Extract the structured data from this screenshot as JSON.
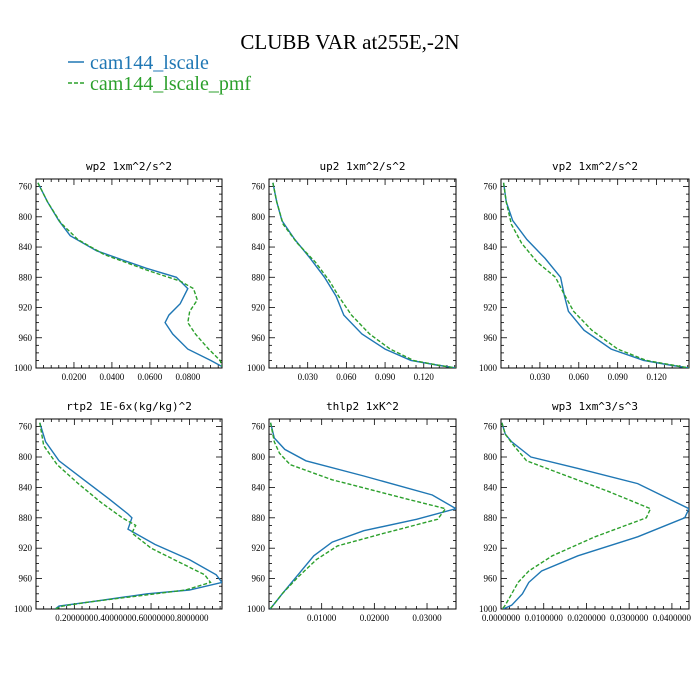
{
  "title": "CLUBB VAR at255E,-2N",
  "colors": {
    "series1": "#1f77b4",
    "series2": "#2ca02c"
  },
  "legend": [
    {
      "label": "cam144_lscale",
      "color": "#1f77b4",
      "dash": false
    },
    {
      "label": "cam144_lscale_pmf",
      "color": "#2ca02c",
      "dash": true
    }
  ],
  "chart_data": [
    {
      "type": "line",
      "title": "wp2  1xm^2/s^2",
      "xlim": [
        0.0,
        0.098
      ],
      "ylim": [
        1000,
        750
      ],
      "yticks": [
        760,
        800,
        840,
        880,
        920,
        960,
        1000
      ],
      "xticks": [
        0.02,
        0.04,
        0.06,
        0.08
      ],
      "xtick_labels": [
        "0.0200",
        "0.0400",
        "0.0600",
        "0.0800"
      ],
      "series": [
        {
          "name": "cam144_lscale",
          "x": [
            0.001,
            0.003,
            0.006,
            0.012,
            0.018,
            0.032,
            0.058,
            0.074,
            0.08,
            0.076,
            0.07,
            0.068,
            0.072,
            0.08,
            0.092,
            0.098
          ],
          "y": [
            755,
            765,
            780,
            805,
            825,
            845,
            868,
            880,
            895,
            915,
            930,
            940,
            955,
            975,
            990,
            998
          ]
        },
        {
          "name": "cam144_lscale_pmf",
          "x": [
            0.001,
            0.003,
            0.006,
            0.013,
            0.022,
            0.036,
            0.06,
            0.076,
            0.083,
            0.085,
            0.081,
            0.08,
            0.084,
            0.091,
            0.097,
            0.098
          ],
          "y": [
            755,
            765,
            780,
            808,
            830,
            850,
            872,
            885,
            895,
            910,
            925,
            940,
            955,
            975,
            990,
            998
          ]
        }
      ]
    },
    {
      "type": "line",
      "title": "up2  1xm^2/s^2",
      "xlim": [
        0.0,
        0.145
      ],
      "ylim": [
        1000,
        750
      ],
      "yticks": [
        760,
        800,
        840,
        880,
        920,
        960,
        1000
      ],
      "xticks": [
        0.03,
        0.06,
        0.09,
        0.12
      ],
      "xtick_labels": [
        "0.030",
        "0.060",
        "0.090",
        "0.120"
      ],
      "series": [
        {
          "name": "cam144_lscale",
          "x": [
            0.003,
            0.006,
            0.01,
            0.02,
            0.032,
            0.043,
            0.052,
            0.058,
            0.072,
            0.09,
            0.11,
            0.13,
            0.145
          ],
          "y": [
            755,
            780,
            805,
            830,
            855,
            880,
            905,
            930,
            955,
            975,
            990,
            996,
            1000
          ]
        },
        {
          "name": "cam144_lscale_pmf",
          "x": [
            0.003,
            0.006,
            0.011,
            0.022,
            0.036,
            0.047,
            0.054,
            0.064,
            0.078,
            0.094,
            0.112,
            0.13,
            0.145
          ],
          "y": [
            755,
            780,
            810,
            835,
            860,
            885,
            905,
            930,
            955,
            975,
            990,
            996,
            1000
          ]
        }
      ]
    },
    {
      "type": "line",
      "title": "vp2  1xm^2/s^2",
      "xlim": [
        0.0,
        0.145
      ],
      "ylim": [
        1000,
        750
      ],
      "yticks": [
        760,
        800,
        840,
        880,
        920,
        960,
        1000
      ],
      "xticks": [
        0.03,
        0.06,
        0.09,
        0.12
      ],
      "xtick_labels": [
        "0.030",
        "0.060",
        "0.090",
        "0.120"
      ],
      "series": [
        {
          "name": "cam144_lscale",
          "x": [
            0.002,
            0.004,
            0.009,
            0.02,
            0.034,
            0.046,
            0.049,
            0.052,
            0.064,
            0.085,
            0.11,
            0.13,
            0.145
          ],
          "y": [
            755,
            780,
            805,
            830,
            855,
            880,
            905,
            925,
            950,
            975,
            990,
            996,
            1000
          ]
        },
        {
          "name": "cam144_lscale_pmf",
          "x": [
            0.002,
            0.004,
            0.008,
            0.016,
            0.028,
            0.042,
            0.048,
            0.056,
            0.07,
            0.09,
            0.112,
            0.132,
            0.145
          ],
          "y": [
            755,
            780,
            810,
            835,
            860,
            880,
            900,
            925,
            950,
            975,
            990,
            996,
            1000
          ]
        }
      ]
    },
    {
      "type": "line",
      "title": "rtp2  1E-6x(kg/kg)^2",
      "xlim": [
        0.0,
        0.97
      ],
      "ylim": [
        1000,
        750
      ],
      "yticks": [
        760,
        800,
        840,
        880,
        920,
        960,
        1000
      ],
      "xticks": [
        0.2,
        0.4,
        0.6,
        0.8
      ],
      "xtick_labels": [
        "0.2000000",
        "0.4000000",
        "0.6000000",
        "0.8000000"
      ],
      "series": [
        {
          "name": "cam144_lscale",
          "x": [
            0.02,
            0.05,
            0.12,
            0.25,
            0.38,
            0.48,
            0.5,
            0.48,
            0.62,
            0.8,
            0.94,
            0.97,
            0.8,
            0.58,
            0.3,
            0.12,
            0.1
          ],
          "y": [
            755,
            780,
            805,
            830,
            855,
            875,
            880,
            895,
            915,
            935,
            955,
            965,
            975,
            980,
            990,
            996,
            1000
          ]
        },
        {
          "name": "cam144_lscale_pmf",
          "x": [
            0.02,
            0.04,
            0.11,
            0.22,
            0.34,
            0.45,
            0.52,
            0.5,
            0.6,
            0.76,
            0.88,
            0.91,
            0.78,
            0.56,
            0.3,
            0.14,
            0.1
          ],
          "y": [
            755,
            785,
            810,
            835,
            860,
            880,
            890,
            900,
            920,
            940,
            955,
            965,
            975,
            982,
            990,
            996,
            1000
          ]
        }
      ]
    },
    {
      "type": "line",
      "title": "thlp2  1xK^2",
      "xlim": [
        0.0,
        0.0355
      ],
      "ylim": [
        1000,
        750
      ],
      "yticks": [
        760,
        800,
        840,
        880,
        920,
        960,
        1000
      ],
      "xticks": [
        0.01,
        0.02,
        0.03
      ],
      "xtick_labels": [
        "0.01000",
        "0.02000",
        "0.03000"
      ],
      "series": [
        {
          "name": "cam144_lscale",
          "x": [
            0.0003,
            0.001,
            0.003,
            0.007,
            0.018,
            0.031,
            0.0355,
            0.028,
            0.018,
            0.012,
            0.0085,
            0.0055,
            0.0025,
            0.0008,
            0.0002
          ],
          "y": [
            755,
            775,
            790,
            805,
            825,
            850,
            868,
            882,
            897,
            912,
            930,
            955,
            980,
            995,
            1000
          ]
        },
        {
          "name": "cam144_lscale_pmf",
          "x": [
            0.0003,
            0.001,
            0.002,
            0.004,
            0.012,
            0.026,
            0.0335,
            0.032,
            0.022,
            0.013,
            0.009,
            0.0055,
            0.0025,
            0.0008,
            0.0002
          ],
          "y": [
            755,
            780,
            795,
            810,
            830,
            855,
            868,
            882,
            900,
            917,
            935,
            958,
            980,
            995,
            1000
          ]
        }
      ]
    },
    {
      "type": "line",
      "title": "wp3  1xm^3/s^3",
      "xlim": [
        0.0,
        0.044
      ],
      "ylim": [
        1000,
        750
      ],
      "yticks": [
        760,
        800,
        840,
        880,
        920,
        960,
        1000
      ],
      "xticks": [
        0.0,
        0.01,
        0.02,
        0.03,
        0.04
      ],
      "xtick_labels": [
        "0.0000000",
        "0.0100000",
        "0.0200000",
        "0.0300000",
        "0.0400000"
      ],
      "series": [
        {
          "name": "cam144_lscale",
          "x": [
            0.0002,
            0.001,
            0.0025,
            0.007,
            0.018,
            0.032,
            0.044,
            0.043,
            0.032,
            0.018,
            0.0095,
            0.0065,
            0.005,
            0.0025,
            0.0005
          ],
          "y": [
            755,
            770,
            780,
            800,
            815,
            835,
            868,
            880,
            905,
            930,
            950,
            965,
            980,
            995,
            1000
          ]
        },
        {
          "name": "cam144_lscale_pmf",
          "x": [
            0.0002,
            0.001,
            0.003,
            0.006,
            0.014,
            0.025,
            0.035,
            0.034,
            0.022,
            0.012,
            0.0065,
            0.004,
            0.0025,
            0.001,
            0.0003
          ],
          "y": [
            755,
            770,
            785,
            805,
            822,
            845,
            868,
            880,
            905,
            930,
            950,
            965,
            980,
            995,
            1000
          ]
        }
      ]
    }
  ]
}
